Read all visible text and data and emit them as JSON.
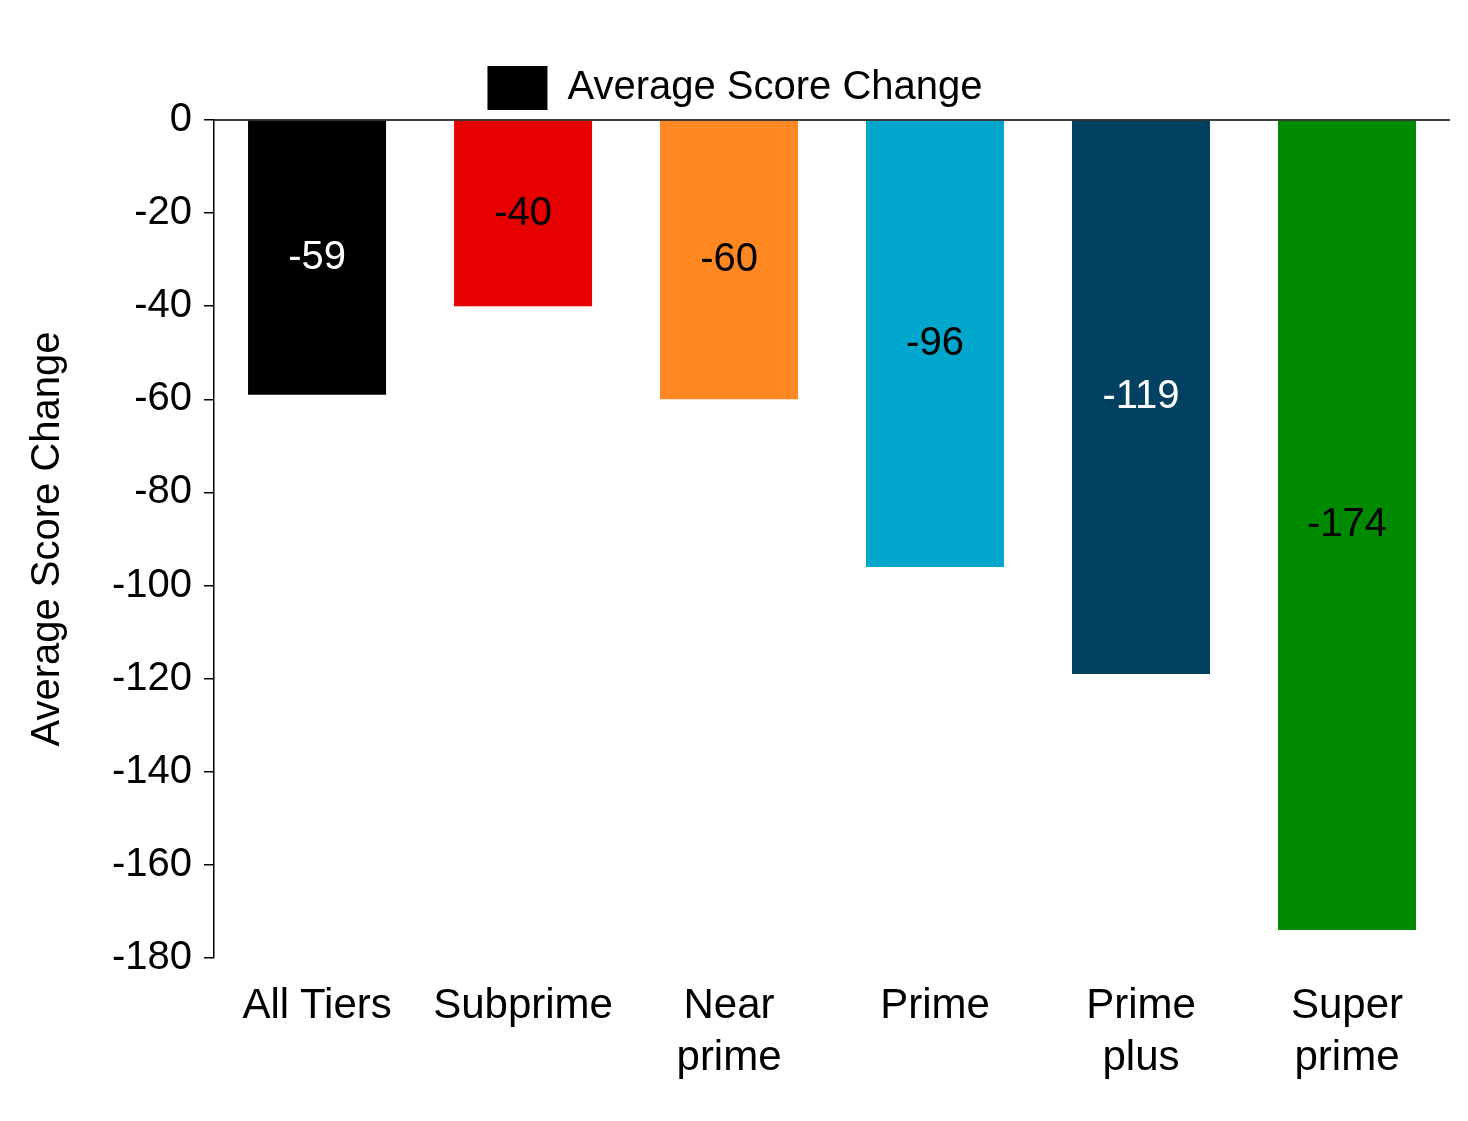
{
  "chart_data": {
    "type": "bar",
    "ylabel": "Average Score Change",
    "categories": [
      "All Tiers",
      "Subprime",
      "Near prime",
      "Prime",
      "Prime plus",
      "Super prime"
    ],
    "series": [
      {
        "name": "Average Score Change",
        "color": "#000000",
        "colors": [
          "#000000",
          "#e60000",
          "#ff8822",
          "#00a6cc",
          "#004060",
          "#008a00"
        ],
        "values": [
          -59,
          -40,
          -60,
          -96,
          -119,
          -174
        ]
      }
    ],
    "ylim": [
      -180,
      0
    ],
    "yticks": [
      0,
      -20,
      -40,
      -60,
      -80,
      -100,
      -120,
      -140,
      -160,
      -180
    ],
    "grid": false,
    "legend": "top",
    "data_labels": true
  }
}
